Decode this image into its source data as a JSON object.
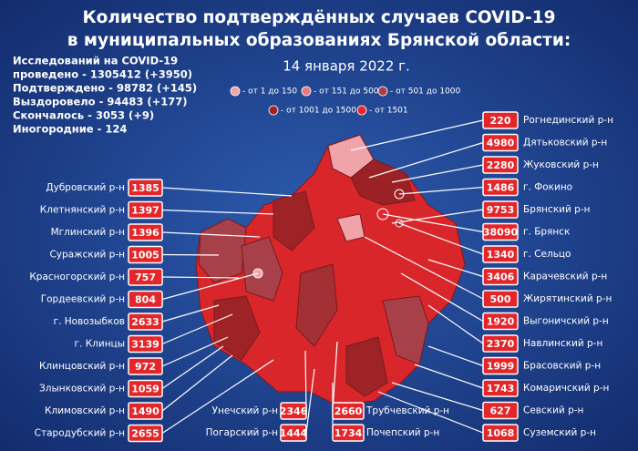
{
  "title": [
    "Количество подтверждённых случаев COVID-19",
    "в муниципальных образованиях Брянской области:"
  ],
  "date": "14 января 2022 г.",
  "stats": [
    "Исследований на COVID-19",
    "проведено - 1305412 (+3950)",
    "Подтверждено - 98782 (+145)",
    "Выздоровело - 94483 (+177)",
    "Скончалось - 3053 (+9)",
    "Иногородние - 124"
  ],
  "legend": [
    {
      "label": "- от 1 до 150",
      "color": "#f2a3a8"
    },
    {
      "label": "- от 151 до 500",
      "color": "#e57a80"
    },
    {
      "label": "- от 501 до 1000",
      "color": "#a8404a"
    },
    {
      "label": "- от 1001 до 1500",
      "color": "#9e2326"
    },
    {
      "label": "- от 1501",
      "color": "#e8282b"
    }
  ],
  "left": [
    {
      "name": "Дубровский р-н",
      "value": 1385
    },
    {
      "name": "Клетнянский р-н",
      "value": 1397
    },
    {
      "name": "Мглинский р-н",
      "value": 1396
    },
    {
      "name": "Суражский р-н",
      "value": 1005
    },
    {
      "name": "Красногорский р-н",
      "value": 757
    },
    {
      "name": "Гордеевский р-н",
      "value": 804
    },
    {
      "name": "г. Новозыбков",
      "value": 2633
    },
    {
      "name": "г. Клинцы",
      "value": 3139
    },
    {
      "name": "Клинцовский р-н",
      "value": 972
    },
    {
      "name": "Злынковский р-н",
      "value": 1059
    },
    {
      "name": "Климовский  р-н",
      "value": 1490
    },
    {
      "name": "Стародубский р-н",
      "value": 2655
    }
  ],
  "right": [
    {
      "name": "Рогнединский р-н",
      "value": 220
    },
    {
      "name": "Дятьковский р-н",
      "value": 4980
    },
    {
      "name": "Жуковский р-н",
      "value": 2280
    },
    {
      "name": "г. Фокино",
      "value": 1486
    },
    {
      "name": "Брянский р-н",
      "value": 9753
    },
    {
      "name": "г. Брянск",
      "value": 38090
    },
    {
      "name": "г. Сельцо",
      "value": 1340
    },
    {
      "name": "Карачевский р-н",
      "value": 3406
    },
    {
      "name": "Жирятинский р-н",
      "value": 500
    },
    {
      "name": "Выгоничский р-н",
      "value": 1920
    },
    {
      "name": "Навлинский р-н",
      "value": 2370
    },
    {
      "name": "Брасовский р-н",
      "value": 1999
    },
    {
      "name": "Комаричский р-н",
      "value": 1743
    },
    {
      "name": "Севский р-н",
      "value": 627
    },
    {
      "name": "Суземский р-н",
      "value": 1068
    }
  ],
  "bottom": [
    {
      "name": "Унечский р-н",
      "value": 2346
    },
    {
      "name": "Погарский р-н",
      "value": 1444
    },
    {
      "name": "Трубчевский р-н",
      "value": 2660
    },
    {
      "name": "Почепский р-н",
      "value": 1734
    }
  ]
}
